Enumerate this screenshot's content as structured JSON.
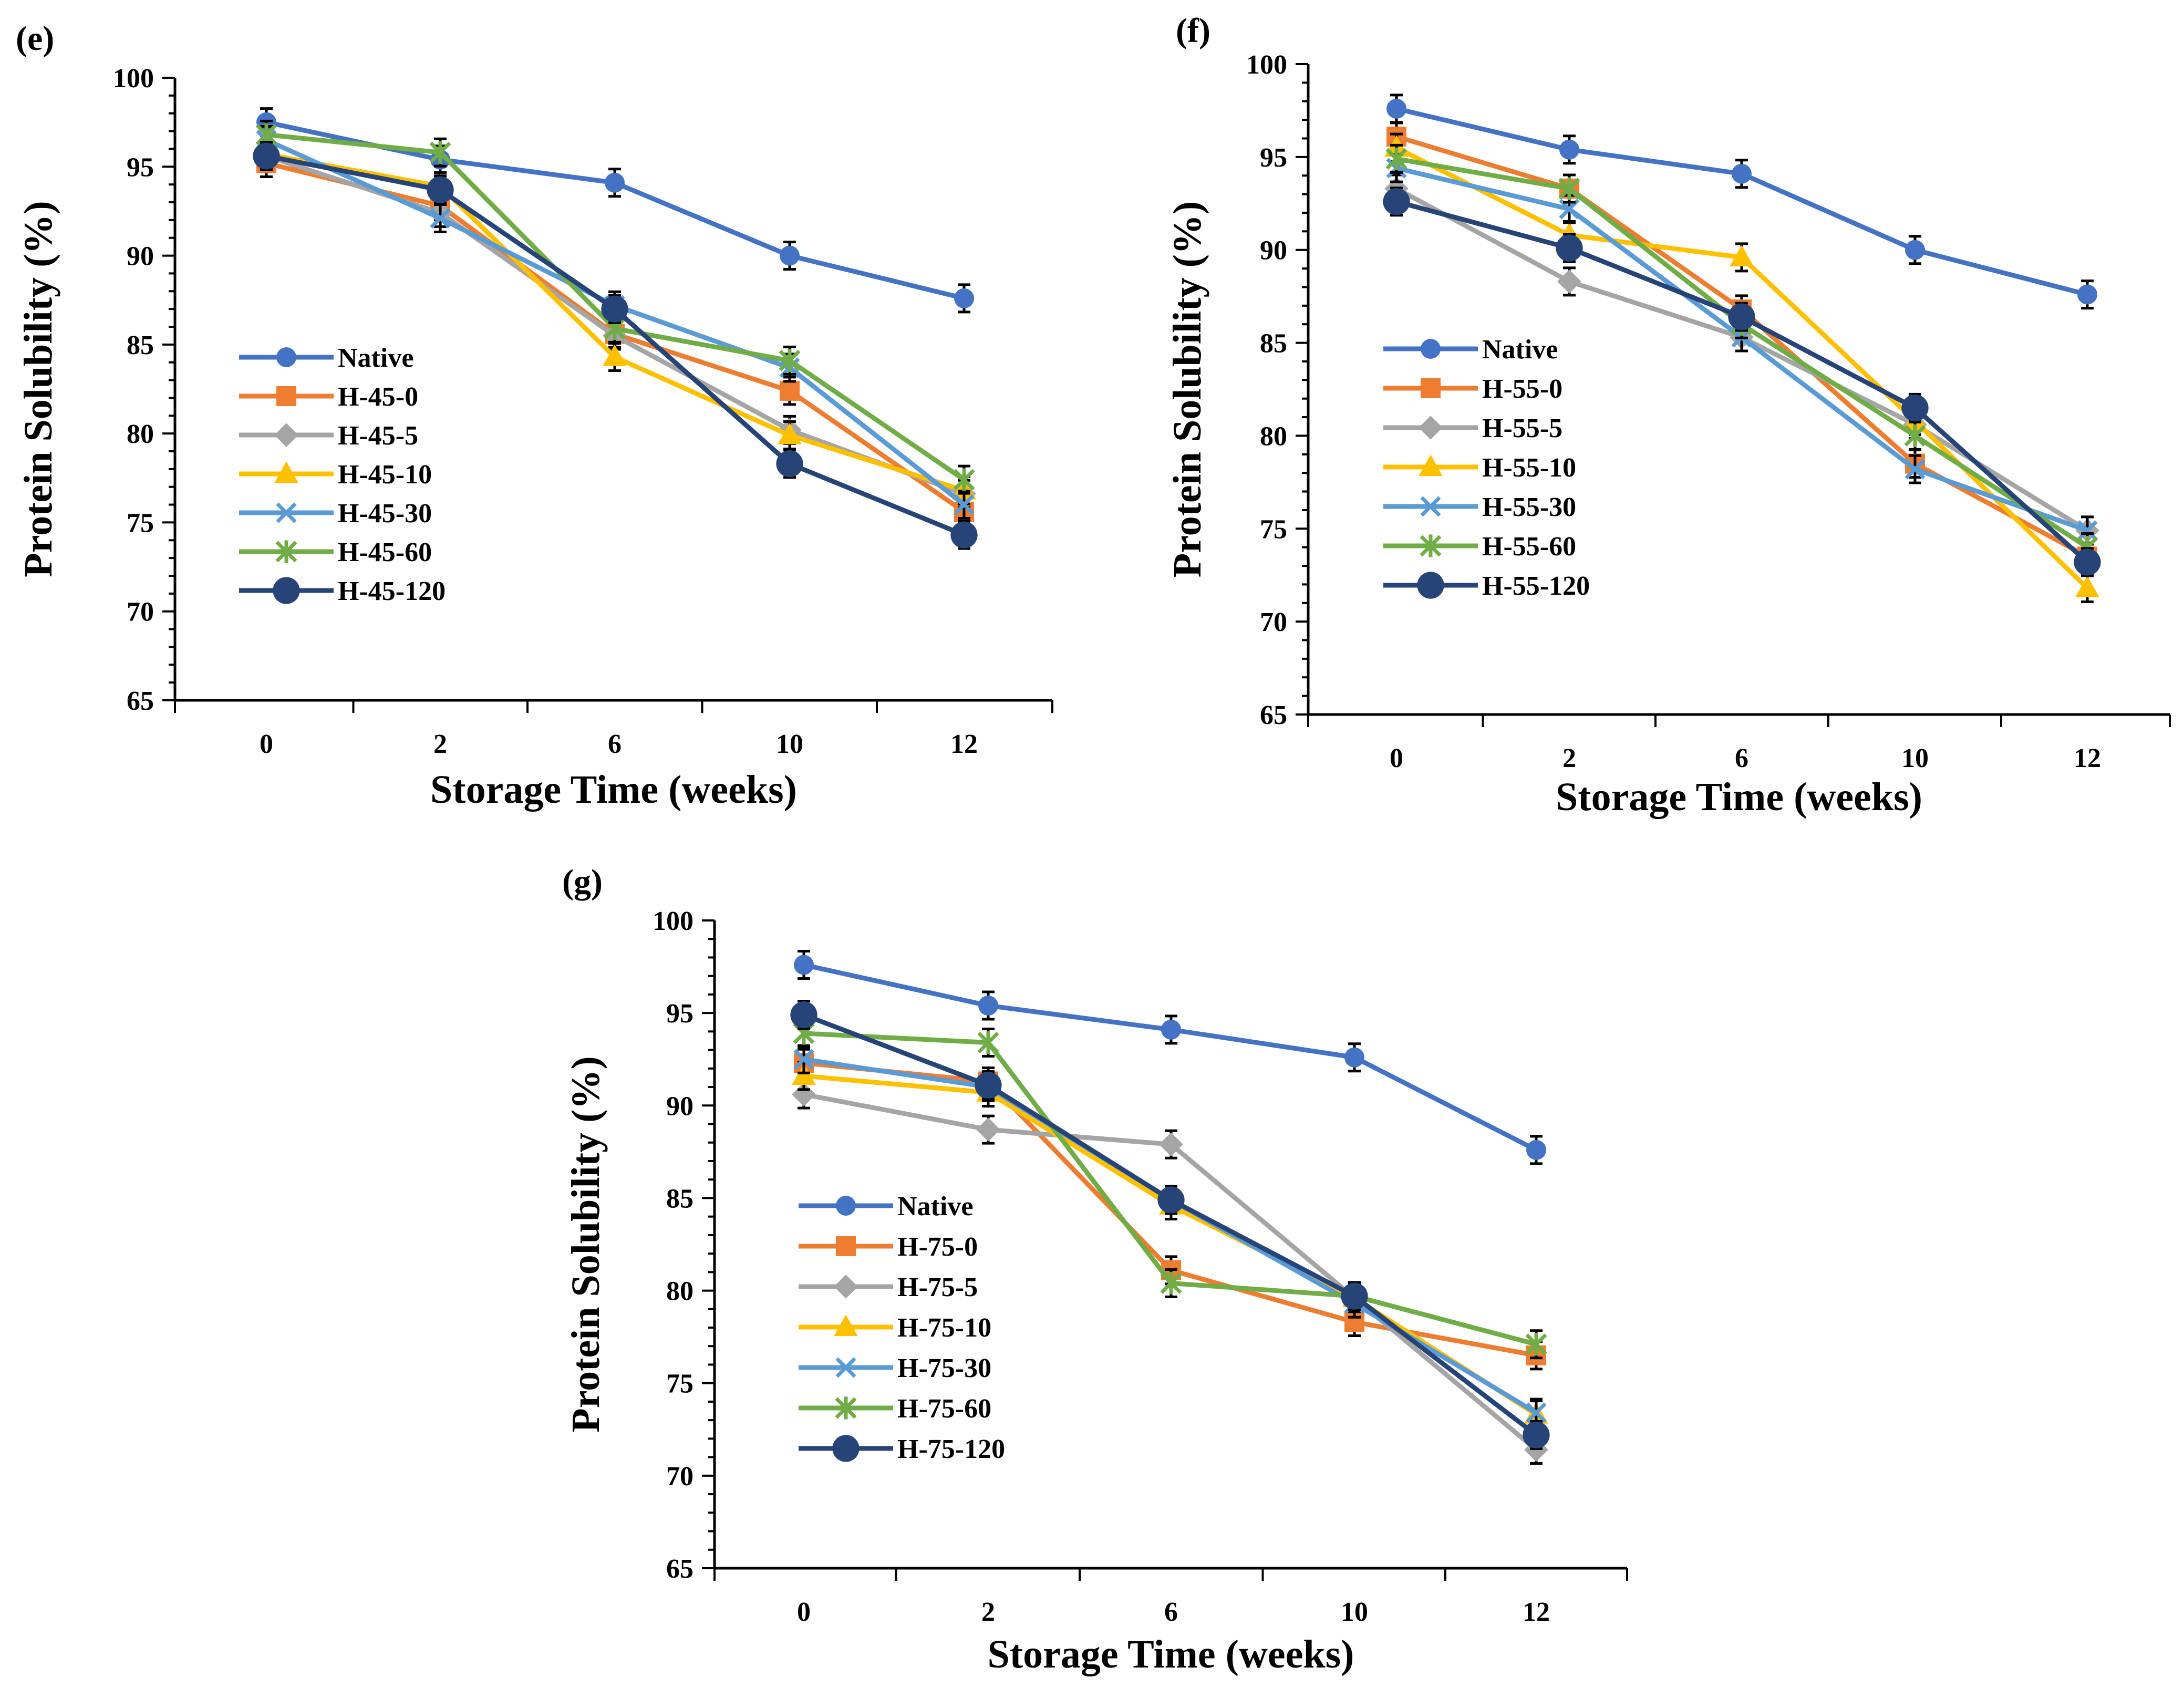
{
  "chart_data": [
    {
      "panel_label": "(e)",
      "type": "line",
      "xlabel": "Storage Time (weeks)",
      "ylabel": "Protein Solubility (%)",
      "categories": [
        "0",
        "2",
        "6",
        "10",
        "12"
      ],
      "ylim": [
        65,
        100
      ],
      "yticks": [
        "65",
        "70",
        "75",
        "80",
        "85",
        "90",
        "95",
        "100"
      ],
      "legend_position": "left-middle",
      "series": [
        {
          "name": "Native",
          "color": "#4472C4",
          "marker": "circle",
          "values": [
            97.5,
            95.4,
            94.1,
            90.0,
            87.6
          ]
        },
        {
          "name": "H-45-0",
          "color": "#ED7D31",
          "marker": "square",
          "values": [
            95.2,
            92.8,
            85.6,
            82.4,
            75.6
          ]
        },
        {
          "name": "H-45-5",
          "color": "#A5A5A5",
          "marker": "diamond",
          "values": [
            95.6,
            92.4,
            85.5,
            80.2,
            76.6
          ]
        },
        {
          "name": "H-45-10",
          "color": "#FFC000",
          "marker": "triangle",
          "values": [
            95.7,
            93.9,
            84.3,
            79.9,
            76.8
          ]
        },
        {
          "name": "H-45-30",
          "color": "#5B9BD5",
          "marker": "x",
          "values": [
            96.5,
            92.1,
            87.2,
            83.7,
            76.0
          ]
        },
        {
          "name": "H-45-60",
          "color": "#70AD47",
          "marker": "star",
          "values": [
            96.8,
            95.8,
            85.9,
            84.1,
            77.4
          ]
        },
        {
          "name": "H-45-120",
          "color": "#264478",
          "marker": "bigcircle",
          "values": [
            95.6,
            93.7,
            87.0,
            78.3,
            74.3
          ]
        }
      ]
    },
    {
      "panel_label": "(f)",
      "type": "line",
      "xlabel": "Storage Time (weeks)",
      "ylabel": "Protein Solubility (%)",
      "categories": [
        "0",
        "2",
        "6",
        "10",
        "12"
      ],
      "ylim": [
        65,
        100
      ],
      "yticks": [
        "65",
        "70",
        "75",
        "80",
        "85",
        "90",
        "95",
        "100"
      ],
      "legend_position": "left-middle",
      "series": [
        {
          "name": "Native",
          "color": "#4472C4",
          "marker": "circle",
          "values": [
            97.6,
            95.4,
            94.1,
            90.0,
            87.6
          ]
        },
        {
          "name": "H-55-0",
          "color": "#ED7D31",
          "marker": "square",
          "values": [
            96.1,
            93.3,
            86.8,
            78.5,
            73.5
          ]
        },
        {
          "name": "H-55-5",
          "color": "#A5A5A5",
          "marker": "diamond",
          "values": [
            93.3,
            88.3,
            85.3,
            80.6,
            74.9
          ]
        },
        {
          "name": "H-55-10",
          "color": "#FFC000",
          "marker": "triangle",
          "values": [
            95.5,
            90.8,
            89.6,
            80.8,
            71.8
          ]
        },
        {
          "name": "H-55-30",
          "color": "#5B9BD5",
          "marker": "x",
          "values": [
            94.4,
            92.2,
            85.3,
            78.2,
            74.9
          ]
        },
        {
          "name": "H-55-60",
          "color": "#70AD47",
          "marker": "star",
          "values": [
            94.9,
            93.3,
            86.0,
            80.0,
            74.0
          ]
        },
        {
          "name": "H-55-120",
          "color": "#264478",
          "marker": "bigcircle",
          "values": [
            92.6,
            90.1,
            86.4,
            81.5,
            73.2
          ]
        }
      ]
    },
    {
      "panel_label": "(g)",
      "type": "line",
      "xlabel": "Storage Time (weeks)",
      "ylabel": "Protein Solubility (%)",
      "categories": [
        "0",
        "2",
        "6",
        "10",
        "12"
      ],
      "ylim": [
        65,
        100
      ],
      "yticks": [
        "65",
        "70",
        "75",
        "80",
        "85",
        "90",
        "95",
        "100"
      ],
      "legend_position": "left-middle",
      "series": [
        {
          "name": "Native",
          "color": "#4472C4",
          "marker": "circle",
          "values": [
            97.6,
            95.4,
            94.1,
            92.6,
            87.6
          ]
        },
        {
          "name": "H-75-0",
          "color": "#ED7D31",
          "marker": "square",
          "values": [
            92.3,
            91.3,
            81.1,
            78.3,
            76.5
          ]
        },
        {
          "name": "H-75-5",
          "color": "#A5A5A5",
          "marker": "diamond",
          "values": [
            90.6,
            88.7,
            87.9,
            79.6,
            71.4
          ]
        },
        {
          "name": "H-75-10",
          "color": "#FFC000",
          "marker": "triangle",
          "values": [
            91.6,
            90.7,
            84.6,
            79.6,
            73.3
          ]
        },
        {
          "name": "H-75-30",
          "color": "#5B9BD5",
          "marker": "x",
          "values": [
            92.5,
            91.0,
            84.9,
            79.3,
            73.4
          ]
        },
        {
          "name": "H-75-60",
          "color": "#70AD47",
          "marker": "star",
          "values": [
            93.9,
            93.4,
            80.4,
            79.7,
            77.1
          ]
        },
        {
          "name": "H-75-120",
          "color": "#264478",
          "marker": "bigcircle",
          "values": [
            94.9,
            91.1,
            84.9,
            79.7,
            72.2
          ]
        }
      ]
    }
  ]
}
